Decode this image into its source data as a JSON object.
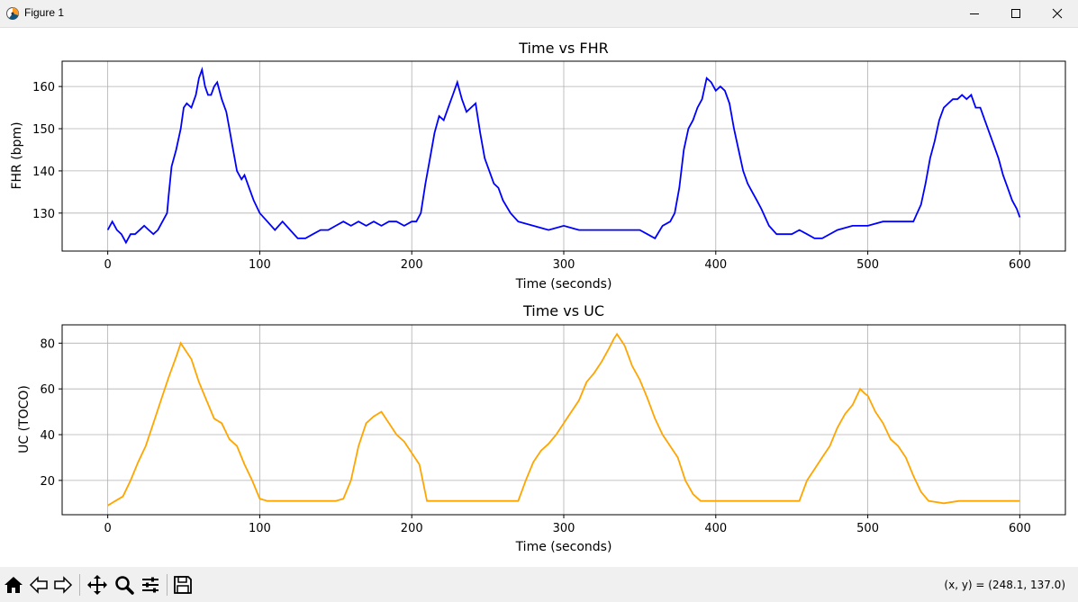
{
  "window": {
    "title": "Figure 1",
    "icons": [
      "figure-app-icon",
      "minimize-icon",
      "maximize-icon",
      "close-icon"
    ]
  },
  "toolbar": {
    "buttons": [
      "home-icon",
      "back-icon",
      "forward-icon",
      "pan-icon",
      "zoom-icon",
      "configure-subplots-icon",
      "save-icon"
    ],
    "coords": "(x, y) = (248.1, 137.0)"
  },
  "colors": {
    "fhr": "#0000ff",
    "uc": "#ffa500",
    "grid": "#b0b0b0"
  },
  "chart_data": [
    {
      "type": "line",
      "title": "Time vs FHR",
      "xlabel": "Time (seconds)",
      "ylabel": "FHR (bpm)",
      "xlim": [
        -30,
        630
      ],
      "ylim": [
        121,
        166
      ],
      "xticks": [
        0,
        100,
        200,
        300,
        400,
        500,
        600
      ],
      "yticks": [
        130,
        140,
        150,
        160
      ],
      "grid": true,
      "series": [
        {
          "x": [
            0,
            3,
            6,
            9,
            12,
            15,
            18,
            21,
            24,
            27,
            30,
            33,
            36,
            39,
            40,
            42,
            45,
            48,
            50,
            52,
            55,
            58,
            60,
            62,
            64,
            66,
            68,
            70,
            72,
            75,
            78,
            80,
            82,
            85,
            88,
            90,
            93,
            96,
            100,
            105,
            110,
            115,
            120,
            125,
            130,
            135,
            140,
            145,
            150,
            155,
            160,
            165,
            170,
            175,
            180,
            185,
            190,
            195,
            200,
            203,
            206,
            209,
            212,
            215,
            218,
            221,
            224,
            227,
            230,
            233,
            236,
            239,
            242,
            245,
            248,
            251,
            254,
            257,
            260,
            265,
            270,
            280,
            290,
            300,
            310,
            320,
            330,
            340,
            350,
            355,
            360,
            365,
            370,
            373,
            376,
            379,
            382,
            385,
            388,
            391,
            394,
            397,
            400,
            403,
            406,
            409,
            412,
            415,
            418,
            421,
            424,
            427,
            430,
            435,
            440,
            445,
            450,
            455,
            460,
            465,
            470,
            480,
            490,
            500,
            510,
            520,
            530,
            535,
            538,
            541,
            544,
            547,
            550,
            553,
            556,
            559,
            562,
            565,
            568,
            571,
            574,
            577,
            580,
            583,
            586,
            589,
            592,
            595,
            598,
            600
          ],
          "y": [
            126,
            128,
            126,
            125,
            123,
            125,
            125,
            126,
            127,
            126,
            125,
            126,
            128,
            130,
            134,
            141,
            145,
            150,
            155,
            156,
            155,
            158,
            162,
            164,
            160,
            158,
            158,
            160,
            161,
            157,
            154,
            150,
            146,
            140,
            138,
            139,
            136,
            133,
            130,
            128,
            126,
            128,
            126,
            124,
            124,
            125,
            126,
            126,
            127,
            128,
            127,
            128,
            127,
            128,
            127,
            128,
            128,
            127,
            128,
            128,
            130,
            137,
            143,
            149,
            153,
            152,
            155,
            158,
            161,
            157,
            154,
            155,
            156,
            149,
            143,
            140,
            137,
            136,
            133,
            130,
            128,
            127,
            126,
            127,
            126,
            126,
            126,
            126,
            126,
            125,
            124,
            127,
            128,
            130,
            136,
            145,
            150,
            152,
            155,
            157,
            162,
            161,
            159,
            160,
            159,
            156,
            150,
            145,
            140,
            137,
            135,
            133,
            131,
            127,
            125,
            125,
            125,
            126,
            125,
            124,
            124,
            126,
            127,
            127,
            128,
            128,
            128,
            132,
            137,
            143,
            147,
            152,
            155,
            156,
            157,
            157,
            158,
            157,
            158,
            155,
            155,
            152,
            149,
            146,
            143,
            139,
            136,
            133,
            131,
            129
          ]
        }
      ]
    },
    {
      "type": "line",
      "title": "Time vs UC",
      "xlabel": "Time (seconds)",
      "ylabel": "UC (TOCO)",
      "xlim": [
        -30,
        630
      ],
      "ylim": [
        5,
        88
      ],
      "xticks": [
        0,
        100,
        200,
        300,
        400,
        500,
        600
      ],
      "yticks": [
        20,
        40,
        60,
        80
      ],
      "grid": true,
      "series": [
        {
          "x": [
            0,
            5,
            10,
            15,
            20,
            25,
            30,
            35,
            40,
            45,
            48,
            50,
            55,
            60,
            65,
            70,
            75,
            80,
            85,
            90,
            95,
            100,
            105,
            110,
            120,
            130,
            140,
            145,
            150,
            155,
            160,
            165,
            170,
            175,
            180,
            185,
            190,
            195,
            200,
            205,
            210,
            220,
            230,
            240,
            250,
            260,
            270,
            275,
            280,
            285,
            290,
            295,
            300,
            305,
            310,
            315,
            320,
            325,
            330,
            333,
            335,
            340,
            345,
            350,
            355,
            360,
            365,
            370,
            375,
            380,
            385,
            390,
            395,
            400,
            420,
            440,
            455,
            460,
            465,
            470,
            475,
            480,
            485,
            490,
            495,
            498,
            500,
            505,
            510,
            515,
            520,
            525,
            530,
            535,
            540,
            550,
            560,
            570,
            580,
            590,
            600
          ],
          "y": [
            9,
            11,
            13,
            20,
            28,
            35,
            45,
            55,
            65,
            74,
            80,
            78,
            73,
            63,
            55,
            47,
            45,
            38,
            35,
            27,
            20,
            12,
            11,
            11,
            11,
            11,
            11,
            11,
            11,
            12,
            20,
            35,
            45,
            48,
            50,
            45,
            40,
            37,
            32,
            27,
            11,
            11,
            11,
            11,
            11,
            11,
            11,
            20,
            28,
            33,
            36,
            40,
            45,
            50,
            55,
            63,
            67,
            72,
            78,
            82,
            84,
            79,
            70,
            64,
            56,
            47,
            40,
            35,
            30,
            20,
            14,
            11,
            11,
            11,
            11,
            11,
            11,
            20,
            25,
            30,
            35,
            43,
            49,
            53,
            60,
            58,
            57,
            50,
            45,
            38,
            35,
            30,
            22,
            15,
            11,
            10,
            11,
            11,
            11,
            11,
            11
          ]
        }
      ]
    }
  ]
}
